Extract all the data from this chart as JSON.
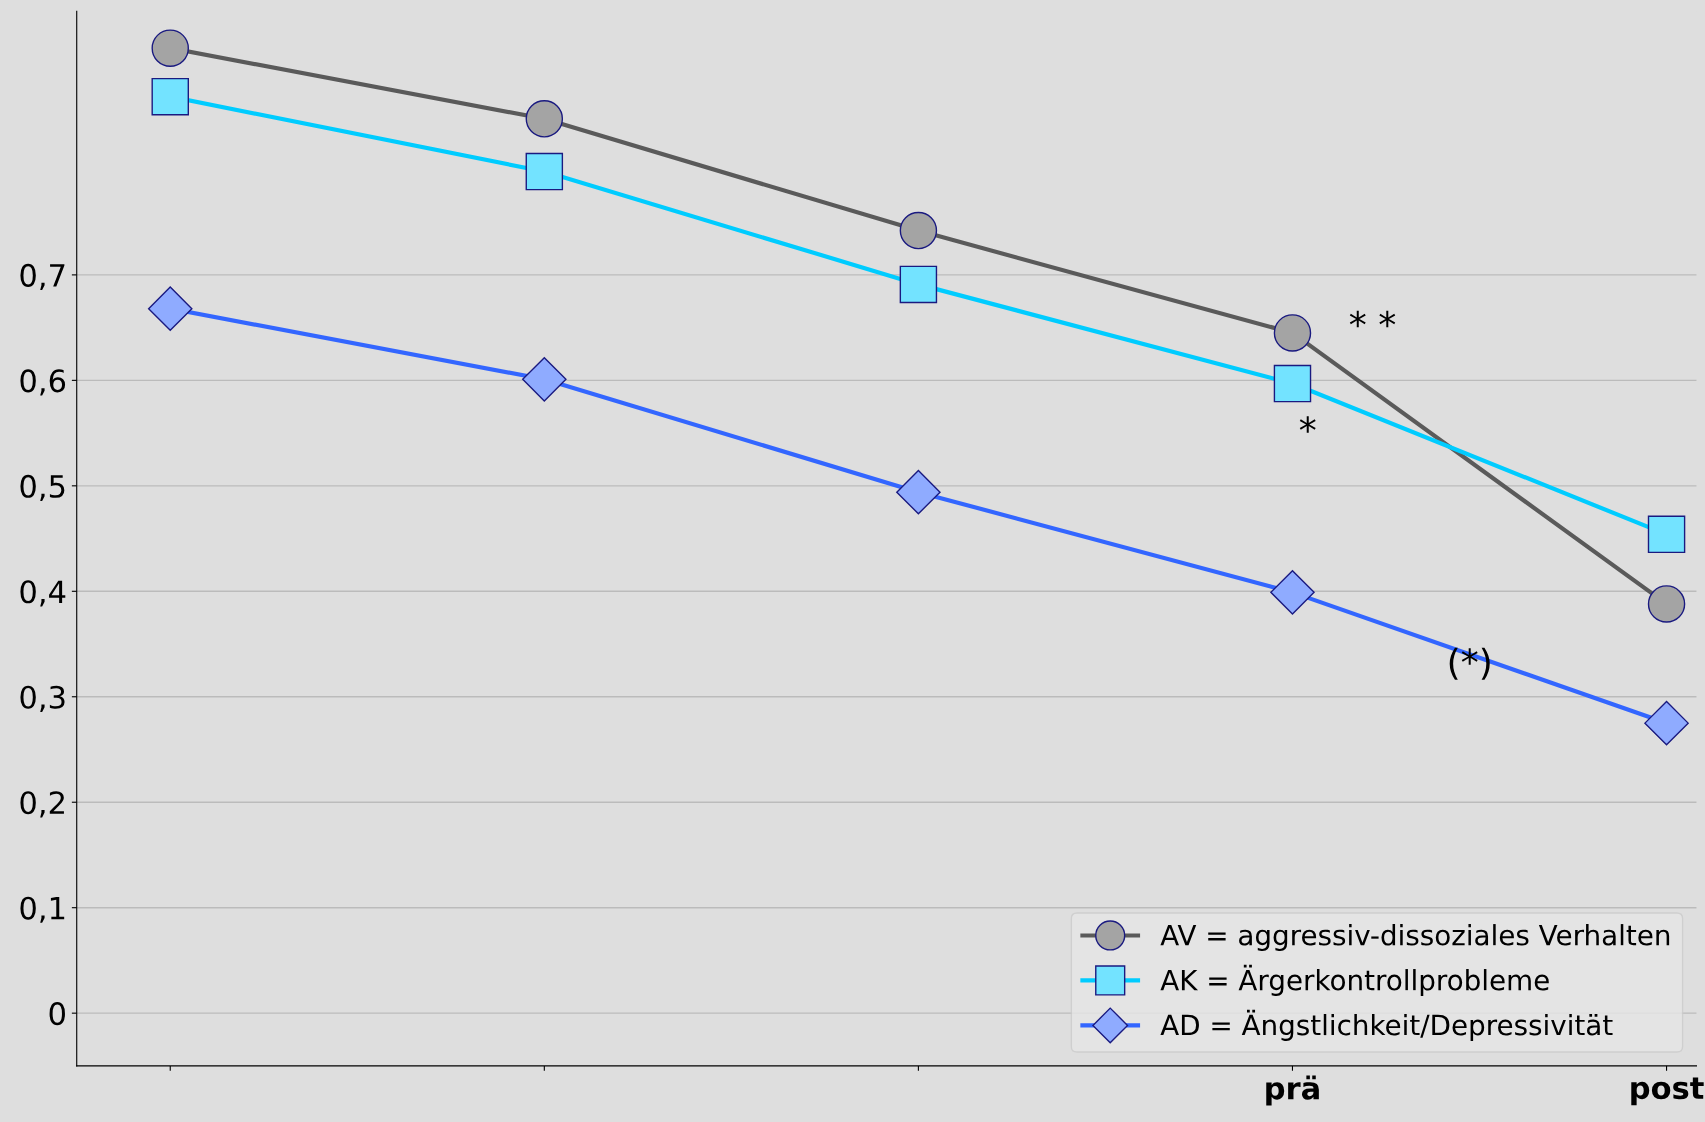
{
  "chart_data": {
    "type": "line",
    "categories": [
      null,
      null,
      null,
      "prä",
      "post"
    ],
    "ylim": [
      -0.05,
      0.95
    ],
    "yticks": [
      {
        "value": 0,
        "label": "0"
      },
      {
        "value": 0.1,
        "label": "0,1"
      },
      {
        "value": 0.2,
        "label": "0,2"
      },
      {
        "value": 0.3,
        "label": "0,3"
      },
      {
        "value": 0.4,
        "label": "0,4"
      },
      {
        "value": 0.5,
        "label": "0,5"
      },
      {
        "value": 0.6,
        "label": "0,6"
      },
      {
        "value": 0.7,
        "label": "0,7"
      }
    ],
    "grid": "y",
    "legend": "bottom right",
    "series": [
      {
        "name": "AV = aggressiv-dissoziales Verhalten",
        "color": "#5a5a5a",
        "marker": "circle",
        "values": [
          0.915,
          0.848,
          0.742,
          0.645,
          0.388
        ]
      },
      {
        "name": "AK = Ärgerkontrollprobleme",
        "color": "#00ccff",
        "marker": "square",
        "values": [
          0.869,
          0.798,
          0.691,
          0.597,
          0.454
        ]
      },
      {
        "name": "AD = Ängstlichkeit/Depressivität",
        "color": "#3366ff",
        "marker": "diamond",
        "values": [
          0.668,
          0.601,
          0.494,
          0.399,
          0.275
        ]
      }
    ],
    "annotations": [
      "* *",
      "*",
      "(*)"
    ]
  }
}
